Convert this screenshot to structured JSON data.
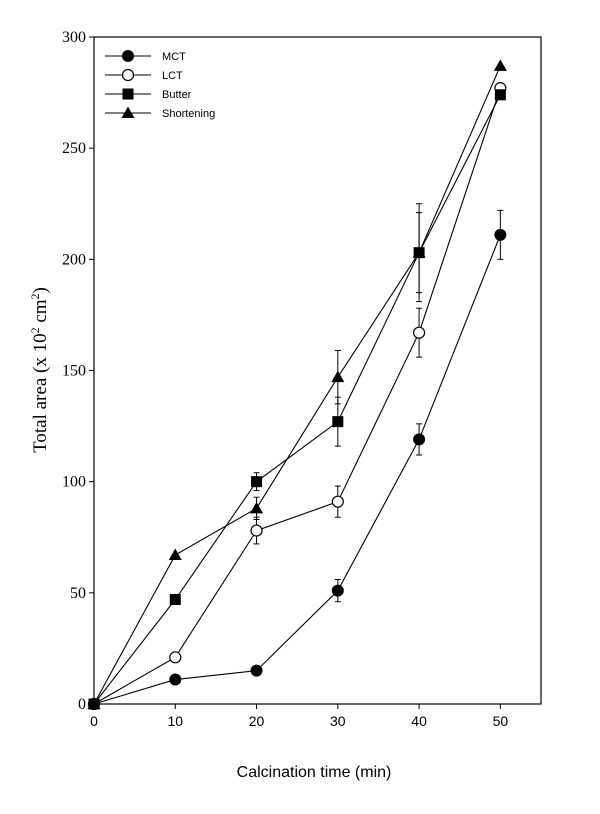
{
  "chart_data": {
    "type": "line",
    "xlabel": "Calcination time  (min)",
    "ylabel": {
      "main": "Total area (x 10",
      "sup1": "2",
      "mid": " cm",
      "sup2": "2",
      "end": ")"
    },
    "xlim": [
      0,
      55
    ],
    "ylim": [
      0,
      300
    ],
    "x_ticks": [
      0,
      10,
      20,
      30,
      40,
      50
    ],
    "y_ticks": [
      0,
      50,
      100,
      150,
      200,
      250,
      300
    ],
    "grid": false,
    "legend_position": "top-left",
    "x": [
      0,
      10,
      20,
      30,
      40,
      50
    ],
    "series": [
      {
        "name": "MCT",
        "marker": "filled-circle",
        "values": [
          0,
          11,
          15,
          51,
          119,
          211
        ],
        "errors": [
          0,
          0,
          0,
          5,
          7,
          11
        ]
      },
      {
        "name": "LCT",
        "marker": "open-circle",
        "values": [
          0,
          21,
          78,
          91,
          167,
          277
        ],
        "errors": [
          0,
          0,
          6,
          7,
          11,
          0
        ]
      },
      {
        "name": "Butter",
        "marker": "filled-square",
        "values": [
          0,
          47,
          100,
          127,
          203,
          274
        ],
        "errors": [
          0,
          0,
          4,
          11,
          22,
          0
        ]
      },
      {
        "name": "Shortening",
        "marker": "filled-triangle",
        "values": [
          0,
          67,
          88,
          147,
          203,
          287
        ],
        "errors": [
          0,
          0,
          5,
          12,
          18,
          0
        ]
      }
    ]
  }
}
